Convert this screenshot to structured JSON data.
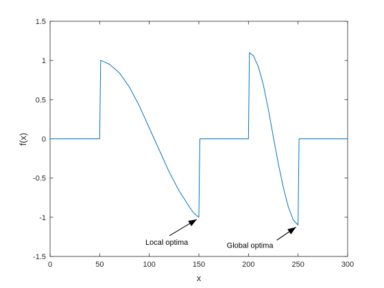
{
  "chart_data": {
    "type": "line",
    "xlabel": "x",
    "ylabel": "f(x)",
    "xlim": [
      0,
      300
    ],
    "ylim": [
      -1.5,
      1.5
    ],
    "xticks": [
      0,
      50,
      100,
      150,
      200,
      250,
      300
    ],
    "yticks": [
      -1.5,
      -1,
      -0.5,
      0,
      0.5,
      1,
      1.5
    ],
    "grid": false,
    "series": [
      {
        "color": "#0072BD",
        "x": [
          0,
          50,
          51,
          55,
          60,
          70,
          80,
          90,
          100,
          110,
          120,
          130,
          140,
          145,
          150,
          151,
          200,
          201,
          205,
          210,
          215,
          220,
          225,
          230,
          235,
          240,
          245,
          250,
          251,
          300
        ],
        "y": [
          0,
          0,
          1.0,
          0.98,
          0.95,
          0.84,
          0.66,
          0.42,
          0.14,
          -0.14,
          -0.42,
          -0.66,
          -0.86,
          -0.95,
          -1.0,
          0,
          0,
          1.1,
          1.06,
          0.92,
          0.69,
          0.38,
          0.03,
          -0.31,
          -0.61,
          -0.86,
          -1.03,
          -1.1,
          0,
          0
        ]
      }
    ],
    "annotations": [
      {
        "text": "Local optima",
        "point": [
          150,
          -1.0
        ]
      },
      {
        "text": "Global optima",
        "point": [
          250,
          -1.1
        ]
      }
    ]
  }
}
